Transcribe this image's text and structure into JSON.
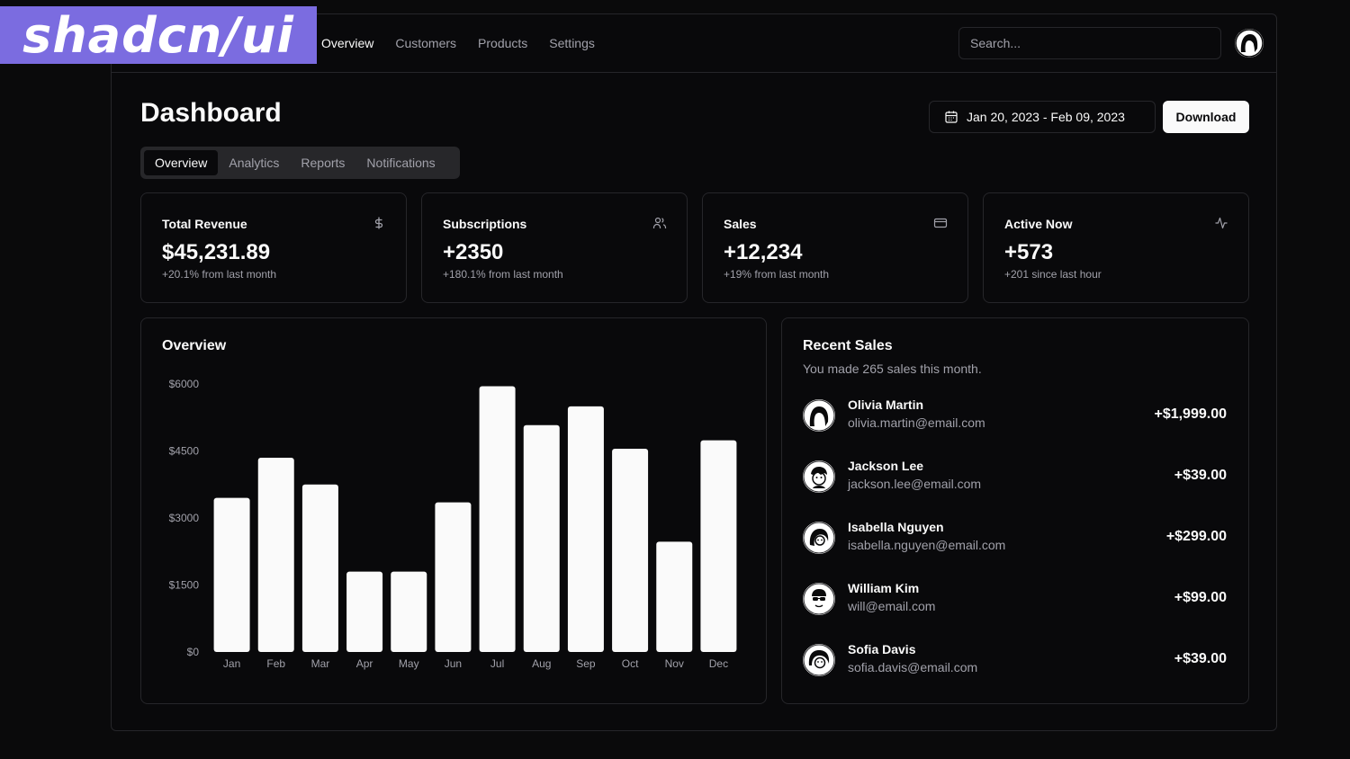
{
  "brand": {
    "logo_text": "shadcn/ui",
    "badge_color": "#7b6ce0"
  },
  "nav": {
    "items": [
      {
        "label": "Overview",
        "active": true
      },
      {
        "label": "Customers",
        "active": false
      },
      {
        "label": "Products",
        "active": false
      },
      {
        "label": "Settings",
        "active": false
      }
    ]
  },
  "search": {
    "placeholder": "Search..."
  },
  "page": {
    "title": "Dashboard",
    "date_range": "Jan 20, 2023 - Feb 09, 2023",
    "download_label": "Download"
  },
  "tabs": [
    {
      "label": "Overview",
      "active": true
    },
    {
      "label": "Analytics",
      "active": false
    },
    {
      "label": "Reports",
      "active": false
    },
    {
      "label": "Notifications",
      "active": false
    }
  ],
  "stats": [
    {
      "label": "Total Revenue",
      "value": "$45,231.89",
      "delta": "+20.1% from last month",
      "icon": "dollar-icon"
    },
    {
      "label": "Subscriptions",
      "value": "+2350",
      "delta": "+180.1% from last month",
      "icon": "users-icon"
    },
    {
      "label": "Sales",
      "value": "+12,234",
      "delta": "+19% from last month",
      "icon": "credit-card-icon"
    },
    {
      "label": "Active Now",
      "value": "+573",
      "delta": "+201 since last hour",
      "icon": "activity-icon"
    }
  ],
  "overview": {
    "title": "Overview"
  },
  "chart_data": {
    "type": "bar",
    "categories": [
      "Jan",
      "Feb",
      "Mar",
      "Apr",
      "May",
      "Jun",
      "Jul",
      "Aug",
      "Sep",
      "Oct",
      "Nov",
      "Dec"
    ],
    "values": [
      3450,
      4350,
      3750,
      1800,
      1800,
      3350,
      5950,
      5080,
      5500,
      4550,
      2470,
      4740
    ],
    "ylim": [
      0,
      6000
    ],
    "yticks": [
      "$0",
      "$1500",
      "$3000",
      "$4500",
      "$6000"
    ],
    "ytick_values": [
      0,
      1500,
      3000,
      4500,
      6000
    ],
    "bar_color": "#fafafa",
    "grid": false
  },
  "recent_sales": {
    "title": "Recent Sales",
    "subtitle": "You made 265 sales this month.",
    "items": [
      {
        "name": "Olivia Martin",
        "email": "olivia.martin@email.com",
        "amount": "+$1,999.00"
      },
      {
        "name": "Jackson Lee",
        "email": "jackson.lee@email.com",
        "amount": "+$39.00"
      },
      {
        "name": "Isabella Nguyen",
        "email": "isabella.nguyen@email.com",
        "amount": "+$299.00"
      },
      {
        "name": "William Kim",
        "email": "will@email.com",
        "amount": "+$99.00"
      },
      {
        "name": "Sofia Davis",
        "email": "sofia.davis@email.com",
        "amount": "+$39.00"
      }
    ]
  }
}
